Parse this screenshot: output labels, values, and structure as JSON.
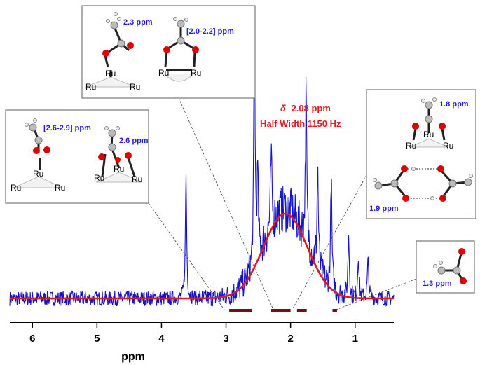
{
  "chart_data": {
    "type": "line",
    "xlabel": "ppm",
    "ylabel": "",
    "xlim": [
      6.35,
      0.4
    ],
    "x_reversed": true,
    "x_ticks": [
      6,
      5,
      4,
      3,
      2,
      1
    ],
    "grid": false,
    "series": [
      {
        "style": "blue noisy experimental spectrum",
        "color": "#1414c8",
        "baseline_noise": 0.03,
        "peaks": [
          {
            "x": 3.62,
            "height": 0.5
          },
          {
            "x": 2.56,
            "height": 1.0
          },
          {
            "x": 2.51,
            "height": 0.32
          },
          {
            "x": 2.3,
            "height": 0.28
          },
          {
            "x": 1.76,
            "height": 0.6
          },
          {
            "x": 1.58,
            "height": 0.42
          },
          {
            "x": 1.37,
            "height": 0.45
          },
          {
            "x": 1.1,
            "height": 0.25
          },
          {
            "x": 0.95,
            "height": 0.18
          },
          {
            "x": 0.8,
            "height": 0.15
          }
        ],
        "broad_component": {
          "center": 2.08,
          "half_width_ppm": 0.4,
          "height": 0.34
        }
      },
      {
        "style": "red Gaussian fit",
        "color": "#e31a1c",
        "center": 2.08,
        "half_width_ppm": 0.4,
        "height": 0.34
      }
    ],
    "annotations": {
      "line1_symbol": "δ",
      "line1_value": "2.08 ppm",
      "line2": "Half Width 1150 Hz"
    },
    "range_bars": [
      {
        "from": 2.95,
        "to": 2.6
      },
      {
        "from": 2.3,
        "to": 2.0
      },
      {
        "from": 1.9,
        "to": 1.75
      },
      {
        "from": 1.35,
        "to": 1.28
      }
    ],
    "range_bar_color": "#7a0d0d"
  },
  "insets": {
    "top_center": {
      "label_a": "2.3 ppm",
      "label_b": "[2.0-2.2] ppm"
    },
    "left": {
      "label_a": "[2.6-2.9] ppm",
      "label_b": "2.6 ppm"
    },
    "right": {
      "label_a": "1.8 ppm",
      "label_b": "1.9 ppm"
    },
    "small_right": {
      "label_a": "1.3 ppm"
    },
    "ru": "Ru"
  },
  "colors": {
    "spectrum": "#1414c8",
    "fit": "#e31a1c",
    "ppm_text": "#1f1fd0",
    "box_border": "#777777"
  }
}
